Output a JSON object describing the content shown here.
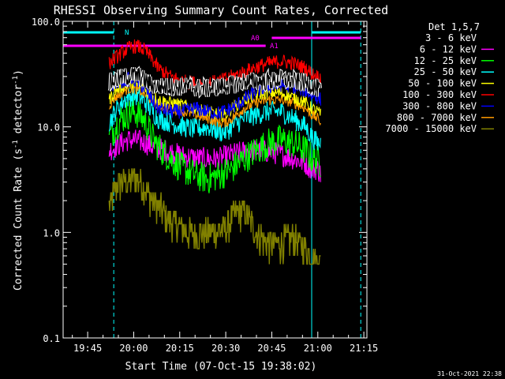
{
  "chart_data": {
    "type": "line",
    "title": "RHESSI Observing Summary Count Rates, Corrected",
    "xlabel": "Start Time (07-Oct-15 19:38:02)",
    "ylabel_pre": "Corrected Count Rate (s",
    "ylabel_sup": "-1",
    "ylabel_mid": " detector",
    "ylabel_post": ")",
    "y_scale": "log",
    "ylim": [
      0.1,
      100.0
    ],
    "xlim_minutes": [
      -1,
      98
    ],
    "x_ticks": [
      {
        "label": "19:45",
        "min": 7
      },
      {
        "label": "20:00",
        "min": 22
      },
      {
        "label": "20:15",
        "min": 37
      },
      {
        "label": "20:30",
        "min": 52
      },
      {
        "label": "20:45",
        "min": 67
      },
      {
        "label": "21:00",
        "min": 82
      },
      {
        "label": "21:15",
        "min": 97
      }
    ],
    "y_ticks": [
      {
        "label": "100.0",
        "v": 100
      },
      {
        "label": "10.0",
        "v": 10
      },
      {
        "label": "1.0",
        "v": 1
      },
      {
        "label": "0.1",
        "v": 0.1
      }
    ],
    "legend": {
      "title": "Det 1,5,7",
      "position": "right"
    },
    "series": [
      {
        "name": "3 - 6 keV",
        "color": "#000000",
        "outline": true,
        "pts": [
          [
            14,
            26
          ],
          [
            16,
            28
          ],
          [
            18,
            29
          ],
          [
            20,
            30
          ],
          [
            22,
            31
          ],
          [
            24,
            30
          ],
          [
            26,
            27
          ],
          [
            28,
            25
          ],
          [
            30,
            24
          ],
          [
            34,
            24
          ],
          [
            40,
            24
          ],
          [
            46,
            23
          ],
          [
            50,
            24
          ],
          [
            54,
            25
          ],
          [
            56,
            26
          ],
          [
            58,
            27
          ],
          [
            62,
            27
          ],
          [
            66,
            27
          ],
          [
            70,
            28
          ],
          [
            74,
            27
          ],
          [
            78,
            26
          ],
          [
            80,
            25
          ],
          [
            82,
            23
          ],
          [
            83,
            22
          ]
        ],
        "noise": 0.18
      },
      {
        "name": "6 - 12 keV",
        "color": "#ff00ff",
        "pts": [
          [
            14,
            6
          ],
          [
            16,
            6.5
          ],
          [
            18,
            7
          ],
          [
            20,
            7.5
          ],
          [
            22,
            7.5
          ],
          [
            24,
            7.3
          ],
          [
            26,
            7
          ],
          [
            28,
            6.5
          ],
          [
            32,
            6
          ],
          [
            38,
            5.3
          ],
          [
            44,
            5
          ],
          [
            50,
            5
          ],
          [
            54,
            5.5
          ],
          [
            58,
            5.8
          ],
          [
            62,
            6
          ],
          [
            66,
            5.8
          ],
          [
            70,
            5.5
          ],
          [
            74,
            5
          ],
          [
            78,
            4.5
          ],
          [
            80,
            4
          ],
          [
            82,
            4
          ],
          [
            83,
            3.5
          ]
        ],
        "noise": 0.22
      },
      {
        "name": "12 - 25 keV",
        "color": "#00ff00",
        "pts": [
          [
            14,
            8
          ],
          [
            16,
            10
          ],
          [
            18,
            12
          ],
          [
            20,
            13
          ],
          [
            22,
            14
          ],
          [
            24,
            13
          ],
          [
            26,
            11
          ],
          [
            28,
            8
          ],
          [
            30,
            6.5
          ],
          [
            34,
            5
          ],
          [
            38,
            4
          ],
          [
            42,
            3.5
          ],
          [
            46,
            3.2
          ],
          [
            50,
            3.5
          ],
          [
            54,
            4
          ],
          [
            58,
            5
          ],
          [
            62,
            6
          ],
          [
            66,
            7
          ],
          [
            70,
            7.5
          ],
          [
            74,
            7
          ],
          [
            78,
            6
          ],
          [
            80,
            5
          ],
          [
            82,
            5
          ],
          [
            83,
            4.5
          ]
        ],
        "noise": 0.3
      },
      {
        "name": "25 - 50 keV",
        "color": "#00ffff",
        "pts": [
          [
            14,
            11
          ],
          [
            16,
            14
          ],
          [
            18,
            17
          ],
          [
            20,
            19
          ],
          [
            22,
            20
          ],
          [
            24,
            19
          ],
          [
            26,
            17
          ],
          [
            28,
            14
          ],
          [
            30,
            12
          ],
          [
            34,
            11
          ],
          [
            38,
            10
          ],
          [
            42,
            9.5
          ],
          [
            46,
            10
          ],
          [
            50,
            9
          ],
          [
            52,
            9
          ],
          [
            54,
            10
          ],
          [
            58,
            12
          ],
          [
            62,
            13
          ],
          [
            66,
            14
          ],
          [
            70,
            14
          ],
          [
            74,
            12
          ],
          [
            78,
            10
          ],
          [
            80,
            8
          ],
          [
            82,
            7
          ],
          [
            83,
            7
          ]
        ],
        "noise": 0.2
      },
      {
        "name": "50 - 100 keV",
        "color": "#ffff00",
        "pts": [
          [
            14,
            18
          ],
          [
            16,
            22
          ],
          [
            18,
            24
          ],
          [
            20,
            25
          ],
          [
            22,
            26
          ],
          [
            24,
            24
          ],
          [
            26,
            22
          ],
          [
            28,
            20
          ],
          [
            30,
            18
          ],
          [
            34,
            17
          ],
          [
            38,
            16
          ],
          [
            42,
            15
          ],
          [
            46,
            14
          ],
          [
            50,
            13
          ],
          [
            52,
            13
          ],
          [
            54,
            15
          ],
          [
            58,
            18
          ],
          [
            62,
            20
          ],
          [
            66,
            21
          ],
          [
            70,
            21
          ],
          [
            74,
            19
          ],
          [
            78,
            17
          ],
          [
            80,
            15
          ],
          [
            82,
            14
          ],
          [
            83,
            13
          ]
        ],
        "noise": 0.12
      },
      {
        "name": "100 - 300 keV",
        "color": "#ff0000",
        "pts": [
          [
            14,
            40
          ],
          [
            16,
            45
          ],
          [
            18,
            50
          ],
          [
            20,
            55
          ],
          [
            22,
            58
          ],
          [
            24,
            57
          ],
          [
            26,
            52
          ],
          [
            28,
            44
          ],
          [
            30,
            36
          ],
          [
            34,
            30
          ],
          [
            38,
            27
          ],
          [
            42,
            26
          ],
          [
            46,
            26
          ],
          [
            50,
            27
          ],
          [
            54,
            30
          ],
          [
            58,
            33
          ],
          [
            62,
            37
          ],
          [
            66,
            40
          ],
          [
            70,
            42
          ],
          [
            74,
            40
          ],
          [
            78,
            36
          ],
          [
            80,
            32
          ],
          [
            82,
            30
          ],
          [
            83,
            29
          ]
        ],
        "noise": 0.14
      },
      {
        "name": "300 - 800 keV",
        "color": "#0000ff",
        "pts": [
          [
            14,
            24
          ],
          [
            16,
            26
          ],
          [
            18,
            27
          ],
          [
            20,
            28
          ],
          [
            22,
            28
          ],
          [
            24,
            26
          ],
          [
            26,
            22
          ],
          [
            28,
            18
          ],
          [
            30,
            15
          ],
          [
            34,
            14
          ],
          [
            38,
            14
          ],
          [
            42,
            15
          ],
          [
            46,
            14
          ],
          [
            50,
            13.5
          ],
          [
            54,
            15
          ],
          [
            58,
            18
          ],
          [
            62,
            22
          ],
          [
            66,
            24
          ],
          [
            70,
            25
          ],
          [
            74,
            24
          ],
          [
            78,
            22
          ],
          [
            80,
            20
          ],
          [
            82,
            19
          ],
          [
            83,
            18
          ]
        ],
        "noise": 0.14
      },
      {
        "name": "800 - 7000 keV",
        "color": "#ff9900",
        "pts": [
          [
            14,
            16
          ],
          [
            16,
            19
          ],
          [
            18,
            21
          ],
          [
            20,
            23
          ],
          [
            22,
            23
          ],
          [
            24,
            22
          ],
          [
            26,
            20
          ],
          [
            28,
            18
          ],
          [
            30,
            16
          ],
          [
            34,
            15
          ],
          [
            38,
            14
          ],
          [
            42,
            13
          ],
          [
            46,
            12
          ],
          [
            50,
            11
          ],
          [
            52,
            11
          ],
          [
            54,
            12
          ],
          [
            58,
            15
          ],
          [
            62,
            17
          ],
          [
            66,
            18
          ],
          [
            70,
            18
          ],
          [
            74,
            17
          ],
          [
            78,
            15
          ],
          [
            80,
            13
          ],
          [
            82,
            12
          ],
          [
            83,
            11
          ]
        ],
        "noise": 0.1
      },
      {
        "name": "7000 - 15000 keV",
        "color": "#808000",
        "step": true,
        "pts": [
          [
            14,
            1.8
          ],
          [
            15,
            2
          ],
          [
            16,
            2.6
          ],
          [
            18,
            3
          ],
          [
            20,
            3
          ],
          [
            22,
            3.4
          ],
          [
            24,
            3
          ],
          [
            26,
            2.6
          ],
          [
            28,
            2
          ],
          [
            30,
            1.8
          ],
          [
            32,
            1.5
          ],
          [
            34,
            1.3
          ],
          [
            36,
            1.2
          ],
          [
            40,
            1
          ],
          [
            44,
            1
          ],
          [
            48,
            1
          ],
          [
            52,
            1.1
          ],
          [
            54,
            1.4
          ],
          [
            56,
            1.6
          ],
          [
            58,
            1.6
          ],
          [
            60,
            1.3
          ],
          [
            62,
            1
          ],
          [
            64,
            0.9
          ],
          [
            66,
            0.8
          ],
          [
            70,
            0.8
          ],
          [
            74,
            0.9
          ],
          [
            76,
            0.8
          ],
          [
            78,
            0.7
          ],
          [
            80,
            0.6
          ],
          [
            82,
            0.55
          ],
          [
            83,
            0.5
          ]
        ],
        "noise": 0.35
      }
    ],
    "flags": [
      {
        "label": "N",
        "color": "#00ffff",
        "y": 74,
        "x0": -1,
        "x1": 15.5
      },
      {
        "label": "N",
        "color": "#00ffff",
        "y": 74,
        "x0": 80,
        "x1": 96
      },
      {
        "label": "A0",
        "color": "#ff00ff",
        "y": 69,
        "x0": 67,
        "x1": 96
      },
      {
        "label": "A1",
        "color": "#ff00ff",
        "y": 56,
        "x0": -1,
        "x1": 65
      }
    ],
    "vlines": [
      {
        "min": -1,
        "color": "#00ffff",
        "dash": false
      },
      {
        "min": 15.5,
        "color": "#00ffff",
        "dash": true
      },
      {
        "min": 80,
        "color": "#00ffff",
        "dash": false
      },
      {
        "min": 96,
        "color": "#00ffff",
        "dash": true
      }
    ],
    "timestamp": "31-Oct-2021 22:38"
  }
}
